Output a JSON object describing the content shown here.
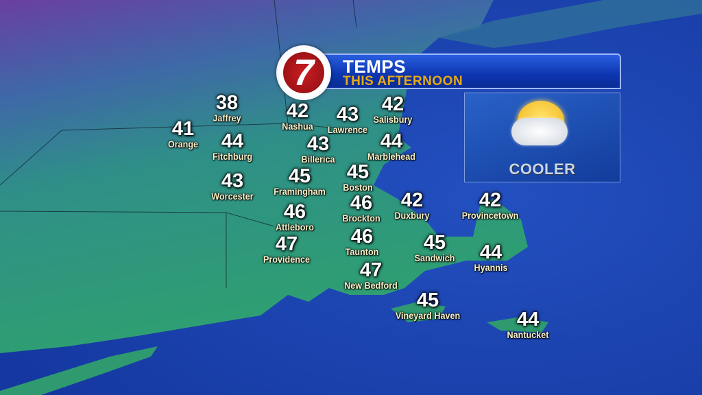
{
  "header": {
    "logo_text": "7",
    "title": "TEMPS",
    "subtitle": "THIS AFTERNOON"
  },
  "condition": {
    "icon": "partly-sunny-icon",
    "label": "COOLER"
  },
  "colors": {
    "ocean": "#1b3fa8",
    "land": "#2f9a7a",
    "banner": "#0d35b0",
    "subtitle": "#e8a913",
    "logo_red": "#c81e22"
  },
  "cities": [
    {
      "name": "Jaffrey",
      "temp": "38"
    },
    {
      "name": "Orange",
      "temp": "41"
    },
    {
      "name": "Fitchburg",
      "temp": "44"
    },
    {
      "name": "Worcester",
      "temp": "43"
    },
    {
      "name": "Nashua",
      "temp": "42"
    },
    {
      "name": "Lawrence",
      "temp": "43"
    },
    {
      "name": "Salisbury",
      "temp": "42"
    },
    {
      "name": "Billerica",
      "temp": "43"
    },
    {
      "name": "Marblehead",
      "temp": "44"
    },
    {
      "name": "Framingham",
      "temp": "45"
    },
    {
      "name": "Boston",
      "temp": "45"
    },
    {
      "name": "Attleboro",
      "temp": "46"
    },
    {
      "name": "Brockton",
      "temp": "46"
    },
    {
      "name": "Duxbury",
      "temp": "42"
    },
    {
      "name": "Provincetown",
      "temp": "42"
    },
    {
      "name": "Providence",
      "temp": "47"
    },
    {
      "name": "Taunton",
      "temp": "46"
    },
    {
      "name": "Sandwich",
      "temp": "45"
    },
    {
      "name": "Hyannis",
      "temp": "44"
    },
    {
      "name": "New Bedford",
      "temp": "47"
    },
    {
      "name": "Vineyard Haven",
      "temp": "45"
    },
    {
      "name": "Nantucket",
      "temp": "44"
    }
  ]
}
